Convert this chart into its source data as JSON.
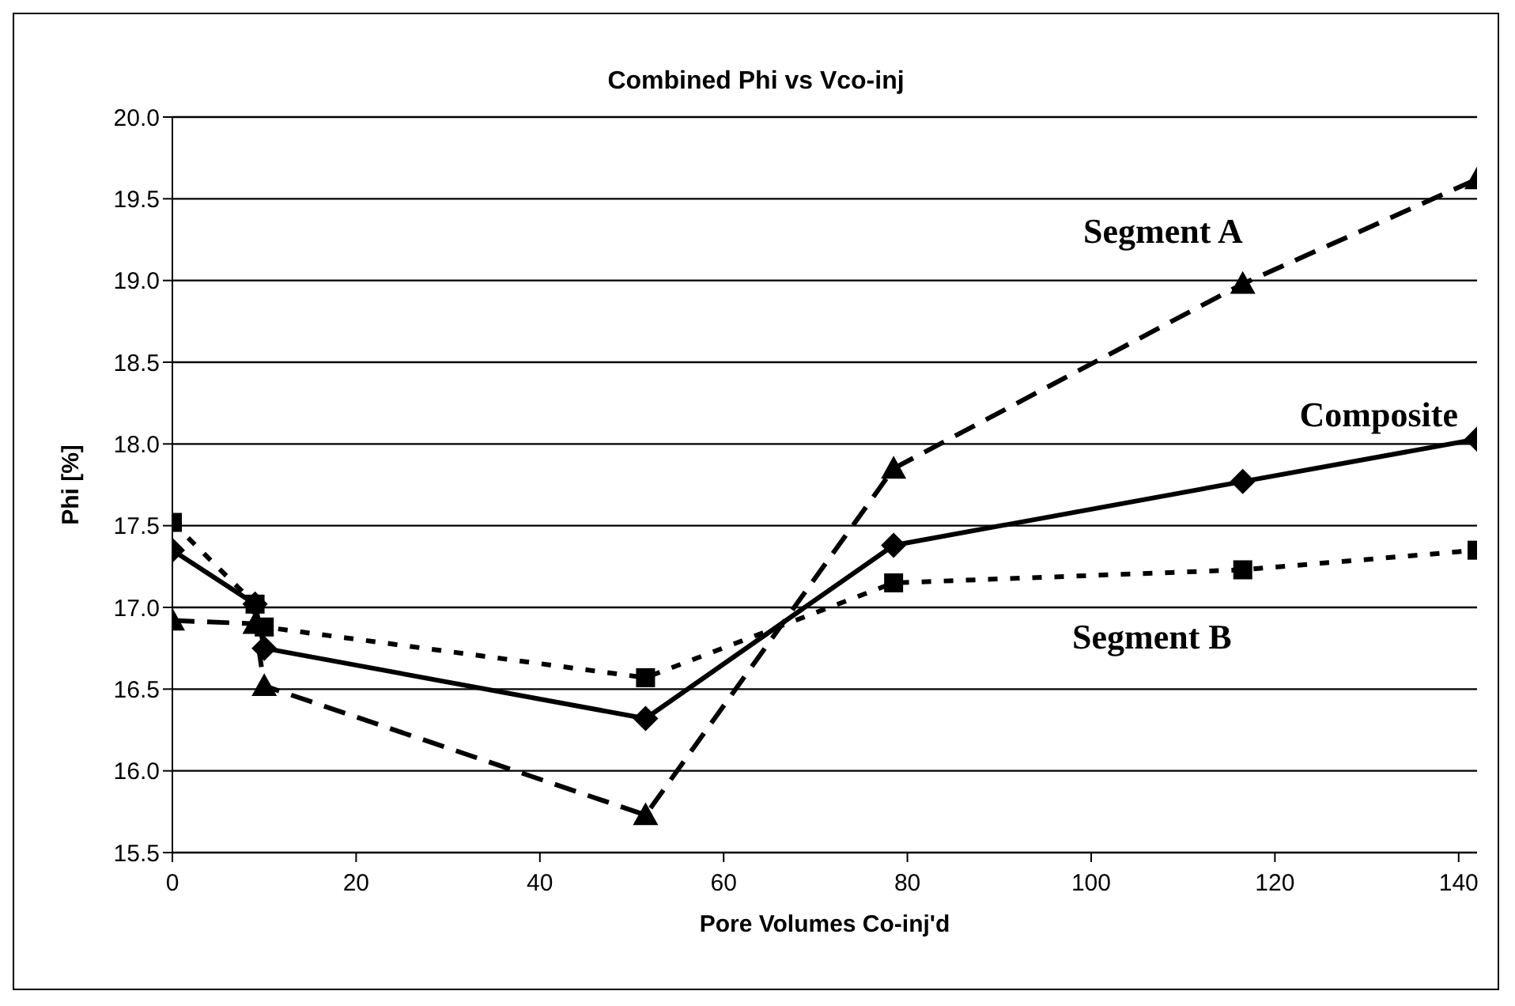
{
  "chart_data": {
    "type": "line",
    "title": "Combined Phi vs Vco-inj",
    "xlabel": "Pore Volumes Co-inj'd",
    "ylabel": "Phi [%]",
    "xlim": [
      0,
      142
    ],
    "xticks": [
      0,
      20,
      40,
      60,
      80,
      100,
      120,
      140
    ],
    "ylim": [
      15.5,
      20
    ],
    "yticks": [
      {
        "value": 15.5,
        "label": "15.5"
      },
      {
        "value": 16,
        "label": "16.0"
      },
      {
        "value": 16.5,
        "label": "16.5"
      },
      {
        "value": 17,
        "label": "17.0"
      },
      {
        "value": 17.5,
        "label": "17.5"
      },
      {
        "value": 18,
        "label": "18.0"
      },
      {
        "value": 18.5,
        "label": "18.5"
      },
      {
        "value": 19,
        "label": "19.0"
      },
      {
        "value": 19.5,
        "label": "19.5"
      },
      {
        "value": 20,
        "label": "20.0"
      }
    ],
    "grid": "y",
    "series": [
      {
        "name": "Segment A",
        "color": "#000000",
        "marker": "triangle",
        "line_style": "dashed",
        "x": [
          0,
          9,
          10,
          51.5,
          78.5,
          116.5,
          142
        ],
        "values": [
          16.92,
          16.9,
          16.52,
          15.73,
          17.85,
          18.98,
          19.62
        ]
      },
      {
        "name": "Composite",
        "color": "#000000",
        "marker": "diamond",
        "line_style": "solid",
        "x": [
          0,
          9,
          10,
          51.5,
          78.5,
          116.5,
          142
        ],
        "values": [
          17.35,
          17.02,
          16.75,
          16.32,
          17.38,
          17.77,
          18.03
        ]
      },
      {
        "name": "Segment B",
        "color": "#000000",
        "marker": "square",
        "line_style": "dotted",
        "x": [
          0,
          9,
          10,
          51.5,
          78.5,
          116.5,
          142
        ],
        "values": [
          17.52,
          17.02,
          16.88,
          16.57,
          17.15,
          17.23,
          17.35
        ]
      }
    ]
  }
}
